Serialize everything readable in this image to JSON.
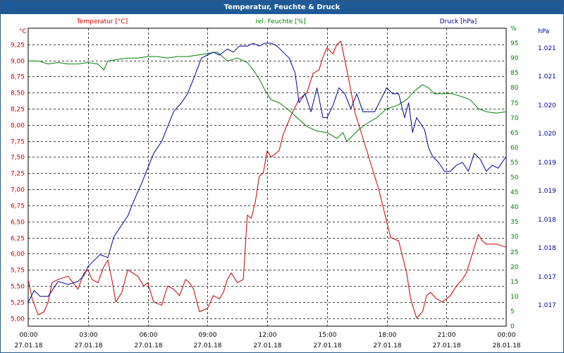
{
  "window": {
    "title": "Temperatur, Feuchte & Druck"
  },
  "legend": {
    "temperature": "Temperatur [°C]",
    "humidity": "rel. Feuchte [%]",
    "pressure": "Druck [hPa]"
  },
  "axis_units": {
    "left": "°C",
    "right1": "%",
    "right2": "hPa"
  },
  "colors": {
    "temperature": "#c00000",
    "humidity": "#008000",
    "pressure": "#000090",
    "title_bar": "#1e5a96"
  },
  "chart_data": {
    "type": "line",
    "title": "Temperatur, Feuchte & Druck",
    "x_ticks": [
      {
        "time": "00:00",
        "date": "27.01.18"
      },
      {
        "time": "03:00",
        "date": "27.01.18"
      },
      {
        "time": "06:00",
        "date": "27.01.18"
      },
      {
        "time": "09:00",
        "date": "27.01.18"
      },
      {
        "time": "12:00",
        "date": "27.01.18"
      },
      {
        "time": "15:00",
        "date": "27.01.18"
      },
      {
        "time": "18:00",
        "date": "27.01.18"
      },
      {
        "time": "21:00",
        "date": "27.01.18"
      },
      {
        "time": "00:00",
        "date": "28.01.18"
      }
    ],
    "xlim": [
      0,
      24
    ],
    "grid": true,
    "temp_axis": {
      "label": "°C",
      "ylim": [
        4.875,
        9.5
      ],
      "ticks": [
        "5,00",
        "5,25",
        "5,50",
        "5,75",
        "6,00",
        "6,25",
        "6,50",
        "6,75",
        "7,00",
        "7,25",
        "7,50",
        "7,75",
        "8,00",
        "8,25",
        "8,50",
        "8,75",
        "9,00",
        "9,25"
      ]
    },
    "humidity_axis": {
      "label": "%",
      "ylim": [
        0,
        100
      ],
      "ticks": [
        "0",
        "5",
        "10",
        "15",
        "20",
        "25",
        "30",
        "35",
        "40",
        "45",
        "50",
        "55",
        "60",
        "65",
        "70",
        "75",
        "80",
        "85",
        "90",
        "95",
        "%"
      ]
    },
    "pressure_axis": {
      "label": "hPa",
      "ticks": [
        "1.017",
        "1.017",
        "1.018",
        "1.018",
        "1.019",
        "1.019",
        "1.020",
        "1.020",
        "1.021",
        "1.021"
      ]
    },
    "series": [
      {
        "name": "Temperatur [°C]",
        "axis": "temp",
        "x": [
          0,
          0.2,
          0.5,
          0.8,
          1,
          1.2,
          1.5,
          2,
          2.5,
          2.8,
          3,
          3.2,
          3.5,
          3.8,
          4,
          4.2,
          4.4,
          4.7,
          5,
          5.5,
          5.8,
          6,
          6.3,
          6.7,
          7,
          7.3,
          7.6,
          7.9,
          8.1,
          8.3,
          8.6,
          9,
          9.3,
          9.6,
          9.8,
          10,
          10.2,
          10.5,
          10.8,
          11,
          11.2,
          11.4,
          11.6,
          11.8,
          12,
          12.2,
          12.6,
          12.8,
          13.2,
          13.6,
          14,
          14.3,
          14.6,
          14.8,
          15,
          15.3,
          15.5,
          15.7,
          15.9,
          16.1,
          16.4,
          16.8,
          17.2,
          17.6,
          18,
          18.2,
          18.6,
          19,
          19.2,
          19.5,
          19.8,
          20,
          20.2,
          20.5,
          20.8,
          21,
          21.2,
          21.5,
          21.8,
          22,
          22.3,
          22.6,
          22.8,
          23,
          23.5,
          24
        ],
        "y": [
          5.6,
          5.3,
          5.05,
          5.1,
          5.25,
          5.55,
          5.6,
          5.65,
          5.45,
          5.7,
          5.75,
          5.6,
          5.55,
          5.8,
          5.9,
          5.6,
          5.25,
          5.4,
          5.75,
          5.65,
          5.5,
          5.55,
          5.25,
          5.2,
          5.5,
          5.45,
          5.35,
          5.6,
          5.55,
          5.45,
          5.1,
          5.15,
          5.35,
          5.3,
          5.4,
          5.6,
          5.7,
          5.55,
          5.6,
          6.6,
          6.55,
          6.8,
          7.2,
          7.25,
          7.6,
          7.5,
          7.6,
          7.85,
          8.15,
          8.4,
          8.5,
          8.8,
          8.85,
          9.05,
          9.2,
          9.1,
          9.25,
          9.3,
          9.0,
          8.7,
          8.2,
          7.8,
          7.4,
          7.0,
          6.5,
          6.25,
          6.2,
          5.7,
          5.3,
          5.0,
          5.1,
          5.35,
          5.4,
          5.3,
          5.25,
          5.3,
          5.35,
          5.5,
          5.6,
          5.7,
          6.0,
          6.3,
          6.2,
          6.15,
          6.15,
          6.1
        ]
      },
      {
        "name": "rel. Feuchte [%]",
        "axis": "humidity",
        "x": [
          0,
          0.5,
          1,
          1.5,
          2,
          2.5,
          3,
          3.5,
          3.8,
          4,
          4.5,
          5,
          5.5,
          6,
          6.5,
          7,
          7.5,
          8,
          8.5,
          9,
          9.5,
          10,
          10.5,
          11,
          11.3,
          11.6,
          11.9,
          12.2,
          12.6,
          13,
          13.5,
          14,
          14.5,
          15,
          15.5,
          15.8,
          16,
          16.3,
          16.6,
          17,
          17.5,
          18,
          18.5,
          19,
          19.4,
          19.8,
          20.1,
          20.4,
          20.8,
          21.3,
          21.8,
          22.2,
          22.6,
          23,
          23.5,
          24
        ],
        "y": [
          89,
          89,
          88,
          88.5,
          88,
          88,
          88.5,
          88,
          86,
          89,
          89.5,
          90,
          90,
          90.5,
          90.5,
          90,
          90.5,
          90.5,
          91,
          91.5,
          92,
          89,
          90,
          88.5,
          86,
          83,
          79,
          76,
          75,
          73,
          70,
          67,
          65.5,
          65,
          63,
          65,
          62,
          64,
          66,
          68,
          70,
          73,
          74,
          76,
          79,
          81,
          80,
          78,
          78,
          78,
          77,
          76,
          73,
          72,
          71.5,
          72
        ]
      },
      {
        "name": "Druck [hPa]",
        "axis": "pressure",
        "x": [
          0,
          0.3,
          0.6,
          1,
          1.5,
          2,
          2.5,
          2.8,
          3,
          3.3,
          3.6,
          4,
          4.3,
          4.7,
          5,
          5.3,
          5.7,
          6,
          6.3,
          6.7,
          7,
          7.3,
          7.7,
          8,
          8.3,
          8.7,
          9,
          9.3,
          9.6,
          10,
          10.3,
          10.6,
          11,
          11.3,
          11.6,
          11.9,
          12.2,
          12.5,
          12.8,
          13.1,
          13.4,
          13.6,
          13.9,
          14.2,
          14.5,
          14.8,
          15,
          15.3,
          15.6,
          15.9,
          16.2,
          16.5,
          16.8,
          17.1,
          17.4,
          17.7,
          18,
          18.3,
          18.6,
          18.9,
          19.1,
          19.3,
          19.5,
          19.7,
          19.9,
          20.1,
          20.3,
          20.6,
          20.9,
          21.2,
          21.5,
          21.8,
          22.1,
          22.4,
          22.7,
          23,
          23.3,
          23.6,
          24
        ],
        "y": [
          8,
          12,
          10,
          10,
          15,
          14,
          15,
          17,
          20,
          22,
          24,
          23,
          30,
          34,
          37,
          42,
          48,
          53,
          58,
          62,
          67,
          72,
          75,
          78,
          83,
          90,
          91,
          92,
          91,
          93,
          92,
          94,
          94,
          95,
          94,
          95,
          95,
          94,
          92,
          90,
          85,
          75,
          78,
          72,
          80,
          70,
          70,
          74,
          80,
          78,
          73,
          78,
          72,
          72,
          72,
          76,
          80,
          78,
          78,
          70,
          75,
          65,
          70,
          68,
          66,
          60,
          57,
          55,
          52,
          52,
          54,
          55,
          52,
          58,
          56,
          52,
          54,
          53,
          57
        ]
      }
    ]
  }
}
